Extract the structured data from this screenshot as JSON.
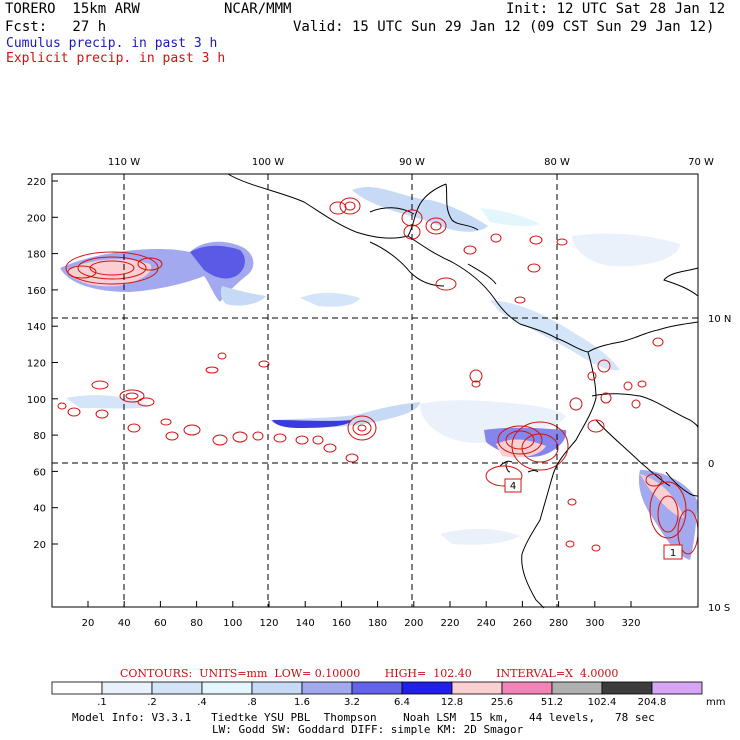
{
  "header": {
    "model": "TORERO  15km ARW",
    "center": "NCAR/MMM",
    "init": "Init: 12 UTC Sat 28 Jan 12",
    "fcst": "Fcst:   27 h",
    "valid": "Valid: 15 UTC Sun 29 Jan 12 (09 CST Sun 29 Jan 12)",
    "legend_cumulus": "Cumulus precip. in past 3 h",
    "legend_explicit": "Explicit precip. in past 3 h"
  },
  "map": {
    "lon_labels": [
      "110 W",
      "100 W",
      "90 W",
      "80 W",
      "70 W"
    ],
    "lat_labels": [
      "10 N",
      "0",
      "10 S"
    ],
    "y_ticks": [
      "220",
      "200",
      "180",
      "160",
      "140",
      "120",
      "100",
      "80",
      "60",
      "40",
      "20"
    ],
    "x_ticks": [
      "20",
      "40",
      "60",
      "80",
      "100",
      "120",
      "140",
      "160",
      "180",
      "200",
      "220",
      "240",
      "260",
      "280",
      "300",
      "320"
    ],
    "box_labels": [
      "4",
      "1"
    ]
  },
  "contours": {
    "line": "CONTOURS:  UNITS=mm  LOW= 0.10000       HIGH=  102.40       INTERVAL=X  4.0000"
  },
  "colorbar": {
    "labels": [
      ".1",
      ".2",
      ".4",
      ".8",
      "1.6",
      "3.2",
      "6.4",
      "12.8",
      "25.6",
      "51.2",
      "102.4",
      "204.8"
    ],
    "unit": "mm",
    "colors": [
      "#ffffff",
      "#eaf1fb",
      "#d4e5f9",
      "#e2f6fb",
      "#c6daf6",
      "#a3a9ef",
      "#6464ea",
      "#2020e8",
      "#f9cfd2",
      "#f384b7",
      "#b0b0b0",
      "#3c3c3c",
      "#d7a5f5"
    ]
  },
  "footer": {
    "line1": "Model Info: V3.3.1   Tiedtke YSU PBL  Thompson    Noah LSM  15 km,   44 levels,   78 sec",
    "line2": "LW: Godd SW: Goddard DIFF: simple KM: 2D Smagor"
  }
}
